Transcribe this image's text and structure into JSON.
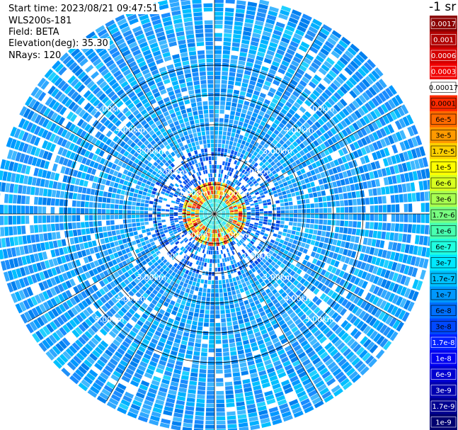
{
  "header": {
    "start_time": "Start time: 2023/08/21 09:47:51",
    "instrument": "WLS200s-181",
    "field": "Field: BETA",
    "elevation": "Elevation(deg): 35.30",
    "nrays": "NRays: 120"
  },
  "colorbar": {
    "title": "-1 sr",
    "labels": [
      "0.0017",
      "0.001",
      "0.0006",
      "0.0003",
      "0.00017",
      "0.0001",
      "6e-5",
      "3e-5",
      "1.7e-5",
      "1e-5",
      "6e-6",
      "3e-6",
      "1.7e-6",
      "1e-6",
      "6e-7",
      "3e-7",
      "1.7e-7",
      "1e-7",
      "6e-8",
      "3e-8",
      "1.7e-8",
      "1e-8",
      "6e-9",
      "3e-9",
      "1.7e-9",
      "1e-9"
    ],
    "colors": [
      "#8b0000",
      "#b00000",
      "#d40000",
      "#f00000",
      "#ffffff",
      "#ff2a00",
      "#ff6a00",
      "#ff9a00",
      "#ffd000",
      "#ffff00",
      "#d8ff20",
      "#a8ff50",
      "#78ff80",
      "#48ffb0",
      "#20ffe0",
      "#00e8ff",
      "#00c0ff",
      "#0098ff",
      "#0070ff",
      "#0048ff",
      "#0020ff",
      "#0000f0",
      "#0000d0",
      "#0000b0",
      "#000090",
      "#000070"
    ]
  },
  "chart_data": {
    "type": "heatmap",
    "projection": "polar (PPI)",
    "field": "BETA",
    "elevation_deg": 35.3,
    "n_rays": 120,
    "range_rings_km": [
      1,
      2,
      3,
      4,
      5
    ],
    "range_label_text": [
      "1.00km",
      "2.00km",
      "3.00km",
      "4.00km",
      "5.00km"
    ],
    "scale": "log",
    "value_range": [
      1e-09,
      0.0017
    ],
    "features": [
      {
        "range_km": [
          0.0,
          0.5
        ],
        "level": "1e-7 to 3e-6"
      },
      {
        "range_km": [
          0.5,
          1.0
        ],
        "level": "1e-5 to 1e-4 (ring of strong backscatter)"
      },
      {
        "range_km": [
          1.0,
          2.0
        ],
        "level": "1e-8 to 1e-7"
      },
      {
        "range_km": [
          2.0,
          5.8
        ],
        "level": "1e-8 to 1e-7"
      }
    ]
  }
}
